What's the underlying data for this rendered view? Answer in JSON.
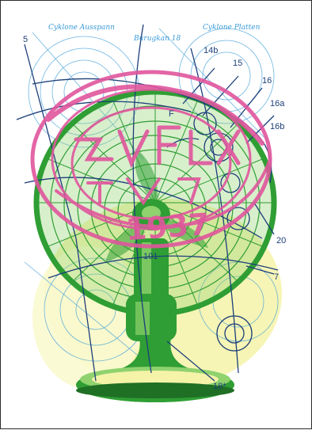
{
  "artwork": {
    "colors": {
      "fan_green": "#2f9e34",
      "fan_dark": "#1f6f25",
      "fan_light": "#8fd26e",
      "stamp_pink": "#e0569d",
      "blueprint_blue": "#3a9bd8",
      "ink_navy": "#1c3f7a",
      "glow_yellow": "#f4f3a8"
    },
    "labels": {
      "n5": "5",
      "n14b": "14b",
      "n15": "15",
      "n16": "16",
      "n16a": "16a",
      "n16b": "16b",
      "n20": "20",
      "n7": "7",
      "n18": "18*",
      "n101": "101",
      "nF": "F"
    },
    "script_labels": {
      "top_left": "Cyklone Ausspann",
      "top_mid": "Burugkan 18",
      "top_right": "Cyklone Platten"
    },
    "stamp_text": {
      "year": "1937"
    }
  }
}
